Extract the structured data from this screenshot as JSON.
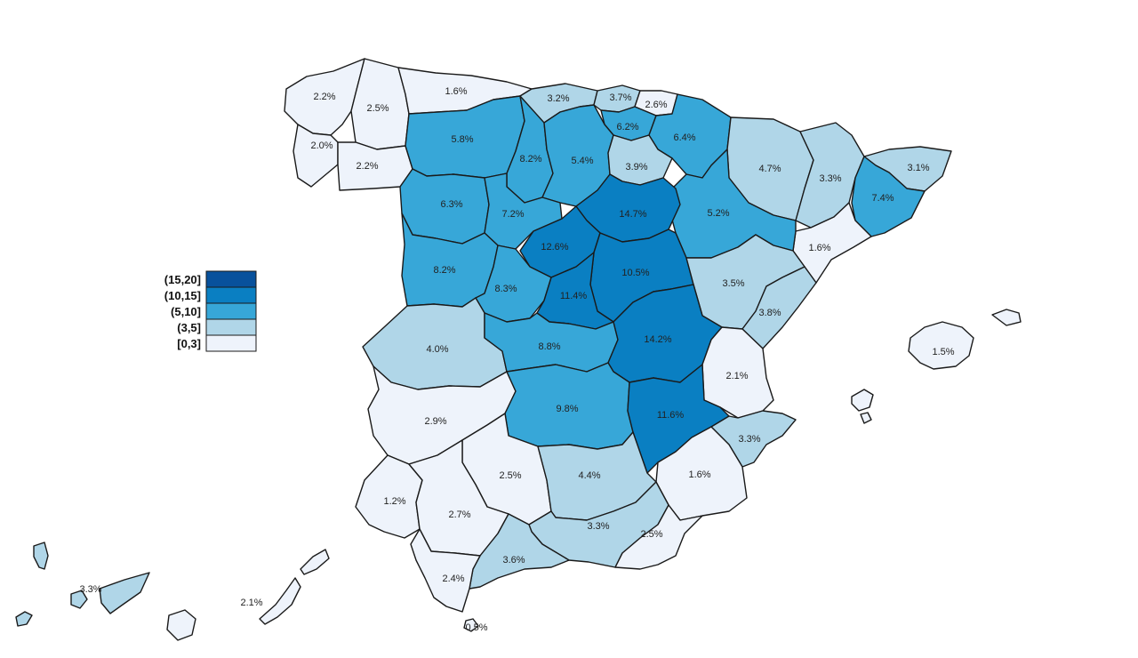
{
  "legend": [
    {
      "label": "(15,20]",
      "color": "#08519c"
    },
    {
      "label": "(10,15]",
      "color": "#0a7fc2"
    },
    {
      "label": "(5,10]",
      "color": "#37a7d8"
    },
    {
      "label": "(3,5]",
      "color": "#b0d6e8"
    },
    {
      "label": "[0,3]",
      "color": "#eef3fb"
    }
  ],
  "regions": {
    "a_coruna": "2.2%",
    "lugo": "2.5%",
    "asturias": "1.6%",
    "pontevedra": "2.0%",
    "ourense": "2.2%",
    "cantabria": "3.2%",
    "bizkaia": "3.7%",
    "gipuzkoa": "2.6%",
    "alava": "6.2%",
    "navarra": "6.4%",
    "leon": "5.8%",
    "palencia": "8.2%",
    "burgos": "5.4%",
    "la_rioja": "3.9%",
    "huesca": "4.7%",
    "lleida": "3.3%",
    "girona": "3.1%",
    "barcelona": "7.4%",
    "zamora": "6.3%",
    "valladolid": "7.2%",
    "soria": "14.7%",
    "zaragoza": "5.2%",
    "tarragona": "1.6%",
    "segovia": "12.6%",
    "salamanca": "8.2%",
    "avila": "8.3%",
    "guadalajara": "10.5%",
    "teruel": "3.5%",
    "madrid": "11.4%",
    "castellon": "3.8%",
    "caceres": "4.0%",
    "toledo": "8.8%",
    "cuenca": "14.2%",
    "valencia": "2.1%",
    "mallorca": "1.5%",
    "badajoz": "2.9%",
    "ciudad_real": "9.8%",
    "albacete": "11.6%",
    "alicante": "3.3%",
    "cordoba": "2.5%",
    "jaen": "4.4%",
    "murcia": "1.6%",
    "huelva": "1.2%",
    "sevilla": "2.7%",
    "granada": "3.3%",
    "almeria": "2.5%",
    "malaga": "3.6%",
    "cadiz": "2.4%",
    "ceuta": "0.5%",
    "tenerife": "3.3%",
    "las_palmas": "2.1%"
  }
}
